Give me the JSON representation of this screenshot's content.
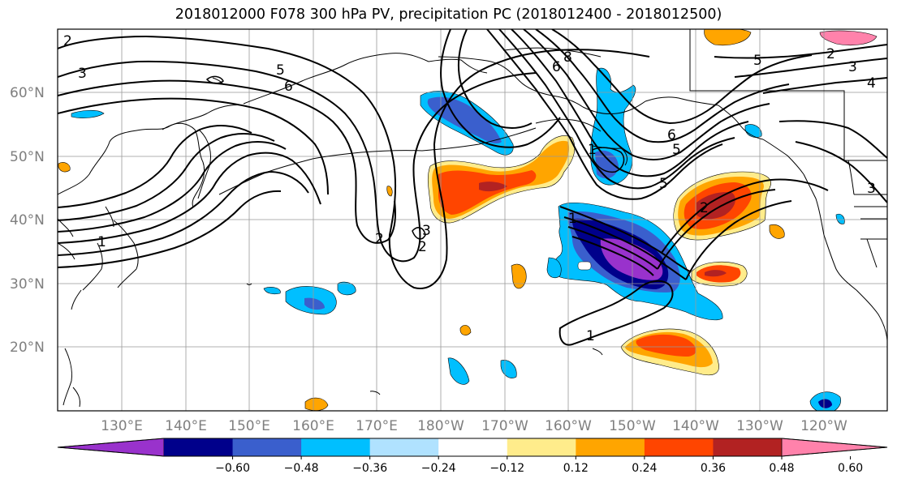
{
  "map": {
    "title": "2018012000 F078 300 hPa PV, precipitation PC (2018012400 - 2018012500)",
    "lat_labels": [
      "60°N",
      "50°N",
      "40°N",
      "30°N",
      "20°N"
    ],
    "lon_labels": [
      "130°E",
      "140°E",
      "150°E",
      "160°E",
      "170°E",
      "180°W",
      "170°W",
      "160°W",
      "150°W",
      "140°W",
      "130°W",
      "120°W"
    ],
    "contour_labels": [
      "2",
      "3",
      "5",
      "6",
      "8",
      "2",
      "3",
      "5",
      "6",
      "1",
      "5",
      "6",
      "1",
      "2",
      "3",
      "1",
      "2",
      "5",
      "3",
      "4",
      "2",
      "1"
    ],
    "shading_colors": {
      "purple": "#9932cc",
      "navy": "#00008b",
      "royalblue": "#3a5fcd",
      "deepskyblue": "#00bfff",
      "lightblue": "#b0e2ff",
      "lightyellow": "#ffec8b",
      "orange": "#ffa500",
      "orangered": "#ff4500",
      "firebrick": "#b22222",
      "pink": "#ff82ab"
    }
  },
  "colorbar": {
    "ticks": [
      "−0.60",
      "−0.48",
      "−0.36",
      "−0.24",
      "−0.12",
      "0.12",
      "0.24",
      "0.36",
      "0.48",
      "0.60"
    ],
    "colors": [
      "#9932cc",
      "#00008b",
      "#3a5fcd",
      "#00bfff",
      "#b0e2ff",
      "#ffffff",
      "#ffec8b",
      "#ffa500",
      "#ff4500",
      "#b22222",
      "#ff82ab"
    ]
  }
}
